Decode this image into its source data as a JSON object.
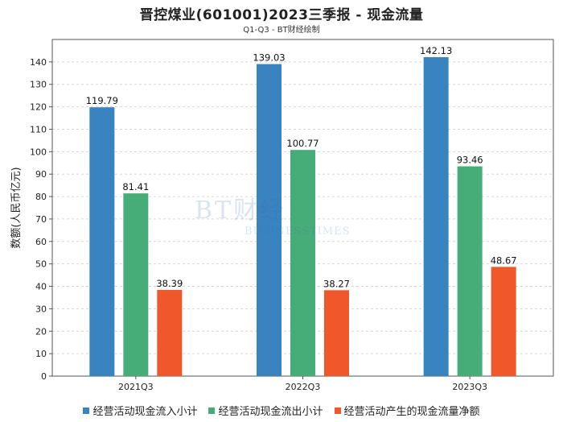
{
  "title": "晋控煤业(601001)2023三季报 - 现金流量",
  "subtitle": "Q1-Q3 - BT财经绘制",
  "watermark": {
    "main": "BT财经",
    "sub": "BUSINESSTIMES"
  },
  "colors": {
    "series": [
      "#3a83c1",
      "#47ad78",
      "#f0572a"
    ]
  },
  "chart_data": {
    "type": "bar",
    "title": "晋控煤业(601001)2023三季报 - 现金流量",
    "subtitle": "Q1-Q3 - BT财经绘制",
    "xlabel": "",
    "ylabel": "数额(人民币亿元)",
    "ylim": [
      0,
      150
    ],
    "yticks": [
      0,
      10,
      20,
      30,
      40,
      50,
      60,
      70,
      80,
      90,
      100,
      110,
      120,
      130,
      140
    ],
    "grid": true,
    "legend_position": "bottom",
    "categories": [
      "2021Q3",
      "2022Q3",
      "2023Q3"
    ],
    "series": [
      {
        "name": "经营活动现金流入小计",
        "values": [
          119.79,
          139.03,
          142.13
        ],
        "labels": [
          "119.79",
          "139.03",
          "142.13"
        ]
      },
      {
        "name": "经营活动现金流出小计",
        "values": [
          81.41,
          100.77,
          93.46
        ],
        "labels": [
          "81.41",
          "100.77",
          "93.46"
        ]
      },
      {
        "name": "经营活动产生的现金流量净额",
        "values": [
          38.39,
          38.27,
          48.67
        ],
        "labels": [
          "38.39",
          "38.27",
          "48.67"
        ]
      }
    ]
  }
}
